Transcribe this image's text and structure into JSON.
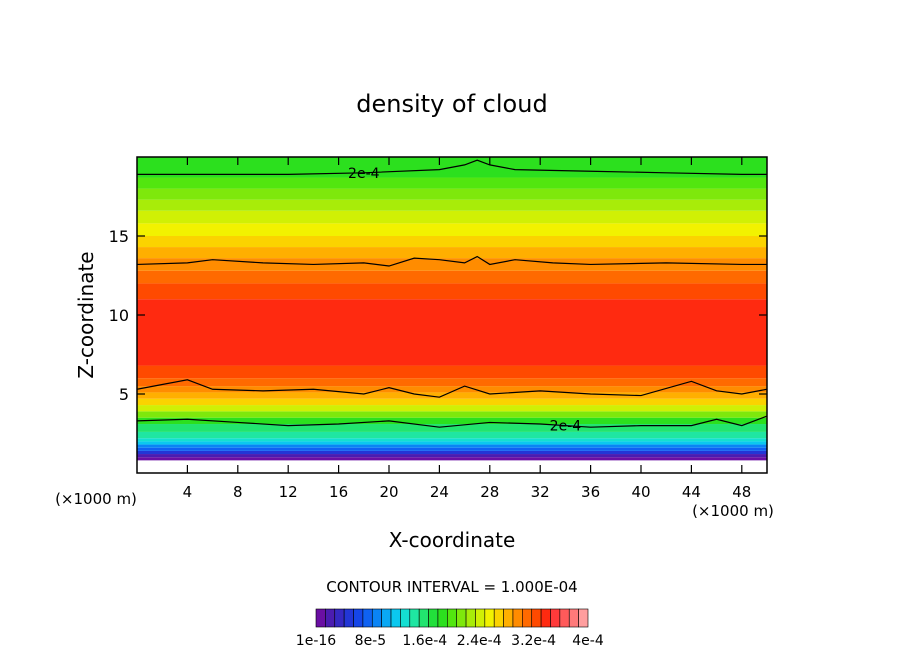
{
  "chart_data": {
    "type": "heatmap",
    "title": "density of cloud",
    "xlabel": "X-coordinate",
    "ylabel": "Z-coordinate",
    "x_unit_label": "(×1000 m)",
    "y_unit_label": "(×1000 m)",
    "xlim": [
      0,
      50
    ],
    "ylim": [
      0,
      20
    ],
    "x_ticks": [
      4,
      8,
      12,
      16,
      20,
      24,
      28,
      32,
      36,
      40,
      44,
      48
    ],
    "y_ticks": [
      5,
      10,
      15
    ],
    "contour_interval_label": "CONTOUR INTERVAL = 1.000E-04",
    "contour_labels": [
      {
        "text": "2e-4",
        "x": 18,
        "z": 19.0
      },
      {
        "text": "2e-4",
        "x": 34,
        "z": 3.0
      }
    ],
    "contour_lines": [
      {
        "name": "upper",
        "x": [
          0,
          6,
          12,
          18,
          24,
          26,
          27,
          28,
          30,
          36,
          42,
          48,
          50
        ],
        "z": [
          18.9,
          18.9,
          18.9,
          19.0,
          19.2,
          19.5,
          19.8,
          19.5,
          19.2,
          19.1,
          19.0,
          18.9,
          18.9
        ]
      },
      {
        "name": "high",
        "x": [
          0,
          4,
          6,
          10,
          14,
          18,
          20,
          22,
          24,
          26,
          27,
          28,
          30,
          33,
          36,
          42,
          48,
          50
        ],
        "z": [
          13.2,
          13.3,
          13.5,
          13.3,
          13.2,
          13.3,
          13.1,
          13.6,
          13.5,
          13.3,
          13.7,
          13.2,
          13.5,
          13.3,
          13.2,
          13.3,
          13.2,
          13.2
        ]
      },
      {
        "name": "mid",
        "x": [
          0,
          2,
          4,
          6,
          10,
          14,
          18,
          20,
          22,
          24,
          26,
          28,
          32,
          36,
          40,
          44,
          46,
          48,
          50
        ],
        "z": [
          5.3,
          5.6,
          5.9,
          5.3,
          5.2,
          5.3,
          5.0,
          5.4,
          5.0,
          4.8,
          5.5,
          5.0,
          5.2,
          5.0,
          4.9,
          5.8,
          5.2,
          5.0,
          5.3
        ]
      },
      {
        "name": "low",
        "x": [
          0,
          4,
          8,
          12,
          16,
          20,
          24,
          28,
          32,
          36,
          40,
          44,
          46,
          48,
          50
        ],
        "z": [
          3.3,
          3.4,
          3.2,
          3.0,
          3.1,
          3.3,
          2.9,
          3.2,
          3.1,
          2.9,
          3.0,
          3.0,
          3.4,
          3.0,
          3.6
        ]
      }
    ],
    "colorbar": {
      "labels": [
        "1e-16",
        "8e-5",
        "1.6e-4",
        "2.4e-4",
        "3.2e-4",
        "4e-4"
      ],
      "colors": [
        "#6a0fa3",
        "#4b1cb0",
        "#3528c2",
        "#2236d6",
        "#1546e8",
        "#0f62f2",
        "#0a84f5",
        "#0aa8f4",
        "#0bc8ef",
        "#14dfd2",
        "#1fe6a2",
        "#22e46f",
        "#22e03b",
        "#2ce01e",
        "#52e60f",
        "#7ee80c",
        "#a8ec09",
        "#d0f005",
        "#f2f200",
        "#fbd300",
        "#ffaf00",
        "#ff8c00",
        "#ff6a00",
        "#ff4a00",
        "#ff2a10",
        "#ff3a3a",
        "#ff5a5a",
        "#ff7a7a",
        "#ff9e9e"
      ]
    },
    "bands": [
      {
        "z0": 0.8,
        "z1": 1.0,
        "color": "#6a0fa3"
      },
      {
        "z0": 1.0,
        "z1": 1.2,
        "color": "#4b1cb0"
      },
      {
        "z0": 1.2,
        "z1": 1.4,
        "color": "#2236d6"
      },
      {
        "z0": 1.4,
        "z1": 1.6,
        "color": "#0f62f2"
      },
      {
        "z0": 1.6,
        "z1": 1.8,
        "color": "#0a84f5"
      },
      {
        "z0": 1.8,
        "z1": 2.0,
        "color": "#0bc8ef"
      },
      {
        "z0": 2.0,
        "z1": 2.2,
        "color": "#14dfd2"
      },
      {
        "z0": 2.2,
        "z1": 2.6,
        "color": "#1fe6a2"
      },
      {
        "z0": 2.6,
        "z1": 3.1,
        "color": "#22e46f"
      },
      {
        "z0": 3.1,
        "z1": 3.5,
        "color": "#2ce01e"
      },
      {
        "z0": 3.5,
        "z1": 3.9,
        "color": "#7ee80c"
      },
      {
        "z0": 3.9,
        "z1": 4.3,
        "color": "#d0f005"
      },
      {
        "z0": 4.3,
        "z1": 4.7,
        "color": "#fbd300"
      },
      {
        "z0": 4.7,
        "z1": 5.1,
        "color": "#ffaf00"
      },
      {
        "z0": 5.1,
        "z1": 5.5,
        "color": "#ff8c00"
      },
      {
        "z0": 5.5,
        "z1": 6.0,
        "color": "#ff6a00"
      },
      {
        "z0": 6.0,
        "z1": 6.8,
        "color": "#ff4a00"
      },
      {
        "z0": 6.8,
        "z1": 11.0,
        "color": "#ff2a10"
      },
      {
        "z0": 11.0,
        "z1": 12.0,
        "color": "#ff4a00"
      },
      {
        "z0": 12.0,
        "z1": 12.8,
        "color": "#ff6a00"
      },
      {
        "z0": 12.8,
        "z1": 13.6,
        "color": "#ff8c00"
      },
      {
        "z0": 13.6,
        "z1": 14.3,
        "color": "#ffaf00"
      },
      {
        "z0": 14.3,
        "z1": 15.0,
        "color": "#fbd300"
      },
      {
        "z0": 15.0,
        "z1": 15.8,
        "color": "#f2f200"
      },
      {
        "z0": 15.8,
        "z1": 16.6,
        "color": "#d0f005"
      },
      {
        "z0": 16.6,
        "z1": 17.3,
        "color": "#a8ec09"
      },
      {
        "z0": 17.3,
        "z1": 18.0,
        "color": "#7ee80c"
      },
      {
        "z0": 18.0,
        "z1": 18.7,
        "color": "#52e60f"
      },
      {
        "z0": 18.7,
        "z1": 20.0,
        "color": "#2ce01e"
      }
    ]
  }
}
